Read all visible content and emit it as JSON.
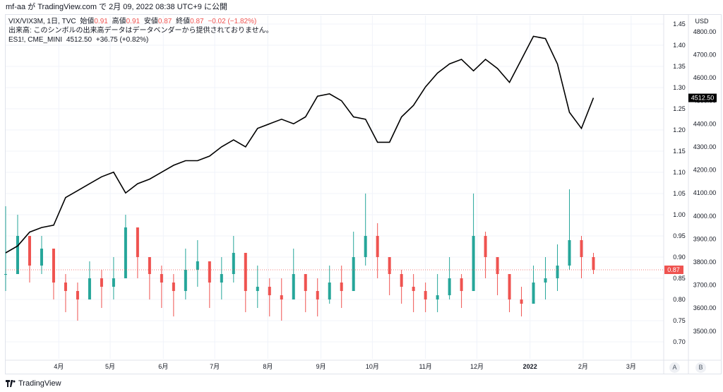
{
  "header": {
    "publish_line": "mf-aa が TradingView.com で 2月 09, 2022 08:38 UTC+9 に公開"
  },
  "legend": {
    "line1": {
      "symbol": "VIX/VIX3M, 1日, TVC",
      "open_label": "始値",
      "open": "0.91",
      "high_label": "高値",
      "high": "0.91",
      "low_label": "安値",
      "low": "0.87",
      "close_label": "終値",
      "close": "0.87",
      "change": "−0.02 (−1.82%)"
    },
    "line2": "出来高: このシンボルの出来高データはデータベンダーから提供されておりません。",
    "line3": {
      "symbol": "ES1!, CME_MINI",
      "value": "4512.50",
      "change": "+36.75 (+0.82%)"
    }
  },
  "footer": {
    "brand": "TradingView"
  },
  "scale_buttons": {
    "a": "A",
    "b": "B"
  },
  "colors": {
    "up": "#26a69a",
    "down": "#ef5350",
    "line": "#000000",
    "grid": "#f0f3fa",
    "axis_text": "#131722"
  },
  "chart_data": {
    "type": "candlestick+line",
    "x": [
      "2021-03-01",
      "2021-03-08",
      "2021-03-15",
      "2021-03-22",
      "2021-03-29",
      "2021-04-05",
      "2021-04-12",
      "2021-04-19",
      "2021-04-26",
      "2021-05-03",
      "2021-05-10",
      "2021-05-17",
      "2021-05-24",
      "2021-05-31",
      "2021-06-07",
      "2021-06-14",
      "2021-06-21",
      "2021-06-28",
      "2021-07-05",
      "2021-07-12",
      "2021-07-19",
      "2021-07-26",
      "2021-08-02",
      "2021-08-09",
      "2021-08-16",
      "2021-08-23",
      "2021-08-30",
      "2021-09-06",
      "2021-09-13",
      "2021-09-20",
      "2021-09-27",
      "2021-10-04",
      "2021-10-11",
      "2021-10-18",
      "2021-10-25",
      "2021-11-01",
      "2021-11-08",
      "2021-11-15",
      "2021-11-22",
      "2021-11-29",
      "2021-12-06",
      "2021-12-13",
      "2021-12-20",
      "2021-12-27",
      "2022-01-03",
      "2022-01-10",
      "2022-01-17",
      "2022-01-24",
      "2022-01-31",
      "2022-02-07"
    ],
    "series": [
      {
        "name": "VIX/VIX3M",
        "axis": "right",
        "close": [
          0.86,
          0.95,
          0.88,
          0.92,
          0.84,
          0.82,
          0.8,
          0.85,
          0.83,
          0.85,
          0.97,
          0.9,
          0.86,
          0.84,
          0.82,
          0.87,
          0.89,
          0.84,
          0.86,
          0.91,
          0.82,
          0.83,
          0.81,
          0.8,
          0.86,
          0.82,
          0.8,
          0.84,
          0.82,
          0.9,
          0.95,
          0.9,
          0.86,
          0.83,
          0.82,
          0.8,
          0.81,
          0.85,
          0.82,
          0.95,
          0.9,
          0.86,
          0.8,
          0.79,
          0.84,
          0.85,
          0.88,
          0.94,
          0.9,
          0.87
        ],
        "high": [
          1.02,
          1.0,
          0.93,
          0.95,
          0.88,
          0.86,
          0.84,
          0.89,
          0.87,
          0.9,
          1.0,
          0.95,
          0.9,
          0.88,
          0.86,
          0.92,
          0.94,
          0.88,
          0.9,
          0.95,
          0.86,
          0.88,
          0.85,
          0.85,
          0.92,
          0.86,
          0.85,
          0.88,
          0.88,
          0.96,
          1.05,
          0.98,
          0.9,
          0.87,
          0.86,
          0.84,
          0.86,
          0.9,
          0.86,
          1.05,
          0.96,
          0.9,
          0.84,
          0.83,
          0.88,
          0.9,
          0.93,
          1.06,
          0.95,
          0.91
        ],
        "low": [
          0.82,
          0.88,
          0.84,
          0.86,
          0.8,
          0.77,
          0.75,
          0.8,
          0.78,
          0.8,
          0.88,
          0.85,
          0.8,
          0.78,
          0.76,
          0.8,
          0.83,
          0.78,
          0.8,
          0.84,
          0.77,
          0.78,
          0.76,
          0.75,
          0.8,
          0.77,
          0.76,
          0.79,
          0.78,
          0.83,
          0.88,
          0.85,
          0.81,
          0.79,
          0.77,
          0.77,
          0.77,
          0.8,
          0.78,
          0.87,
          0.85,
          0.81,
          0.77,
          0.76,
          0.79,
          0.8,
          0.82,
          0.87,
          0.85,
          0.86
        ]
      },
      {
        "name": "ES1!",
        "axis": "outer-right",
        "close": [
          3840,
          3870,
          3930,
          3950,
          3960,
          4080,
          4110,
          4140,
          4170,
          4190,
          4100,
          4140,
          4160,
          4190,
          4220,
          4240,
          4240,
          4260,
          4300,
          4330,
          4300,
          4380,
          4400,
          4420,
          4400,
          4430,
          4520,
          4530,
          4500,
          4430,
          4420,
          4320,
          4320,
          4430,
          4480,
          4560,
          4620,
          4660,
          4680,
          4630,
          4680,
          4640,
          4580,
          4680,
          4780,
          4770,
          4660,
          4450,
          4380,
          4512.5
        ]
      }
    ],
    "axes": {
      "right": {
        "ticks": [
          "1.45",
          "1.40",
          "1.35",
          "1.30",
          "1.25",
          "1.20",
          "1.15",
          "1.10",
          "1.05",
          "1.00",
          "0.95",
          "0.90",
          "0.85",
          "0.80",
          "0.75",
          "0.70"
        ],
        "range": [
          0.66,
          1.47
        ]
      },
      "outer_right": {
        "unit": "USD",
        "ticks": [
          "4800.00",
          "4700.00",
          "4600.00",
          "4500.00",
          "4400.00",
          "4300.00",
          "4200.00",
          "4100.00",
          "4000.00",
          "3900.00",
          "3800.00",
          "3700.00",
          "3600.00",
          "3500.00"
        ],
        "range": [
          3380,
          4870
        ]
      },
      "x_ticks": [
        "4月",
        "5月",
        "6月",
        "7月",
        "8月",
        "9月",
        "10月",
        "11月",
        "12月",
        "2022",
        "2月",
        "3月"
      ]
    },
    "last_price_labels": {
      "vix_ratio": "0.87",
      "es": "4512.50"
    },
    "grid": true
  }
}
